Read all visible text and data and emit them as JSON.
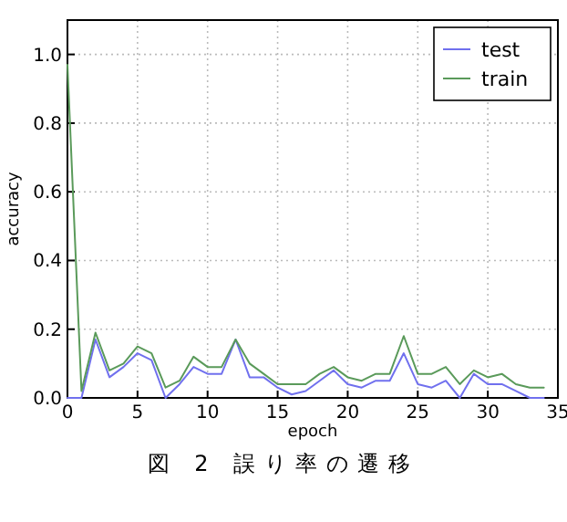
{
  "chart_data": {
    "type": "line",
    "xlabel": "epoch",
    "ylabel": "accuracy",
    "annotations": [
      "図 2 誤り率の遷移"
    ],
    "x": [
      0,
      1,
      2,
      3,
      4,
      5,
      6,
      7,
      8,
      9,
      10,
      11,
      12,
      13,
      14,
      15,
      16,
      17,
      18,
      19,
      20,
      21,
      22,
      23,
      24,
      25,
      26,
      27,
      28,
      29,
      30,
      31,
      32,
      33,
      34
    ],
    "series": [
      {
        "name": "test",
        "color": "#7070ee",
        "values": [
          0,
          0,
          0.17,
          0.06,
          0.09,
          0.13,
          0.11,
          0,
          0.04,
          0.09,
          0.07,
          0.07,
          0.17,
          0.06,
          0.06,
          0.03,
          0.01,
          0.02,
          0.05,
          0.08,
          0.04,
          0.03,
          0.05,
          0.05,
          0.13,
          0.04,
          0.03,
          0.05,
          0,
          0.07,
          0.04,
          0.04,
          0.02,
          0,
          0
        ]
      },
      {
        "name": "train",
        "color": "#5a9a5a",
        "values": [
          0.97,
          0.02,
          0.19,
          0.08,
          0.1,
          0.15,
          0.13,
          0.03,
          0.05,
          0.12,
          0.09,
          0.09,
          0.17,
          0.1,
          0.07,
          0.04,
          0.04,
          0.04,
          0.07,
          0.09,
          0.06,
          0.05,
          0.07,
          0.07,
          0.18,
          0.07,
          0.07,
          0.09,
          0.04,
          0.08,
          0.06,
          0.07,
          0.04,
          0.03,
          0.03
        ]
      }
    ],
    "xlim": [
      0,
      35
    ],
    "xticks": [
      0,
      5,
      10,
      15,
      20,
      25,
      30,
      35
    ],
    "ylim": [
      0,
      1.1
    ],
    "yticks": [
      {
        "value": 0,
        "label": "0.0"
      },
      {
        "value": 0.2,
        "label": "0.2"
      },
      {
        "value": 0.4,
        "label": "0.4"
      },
      {
        "value": 0.6,
        "label": "0.6"
      },
      {
        "value": 0.8,
        "label": "0.8"
      },
      {
        "value": 1,
        "label": "1.0"
      }
    ],
    "grid": true,
    "legend": "top right",
    "marker": "none",
    "line_style": "solid"
  }
}
